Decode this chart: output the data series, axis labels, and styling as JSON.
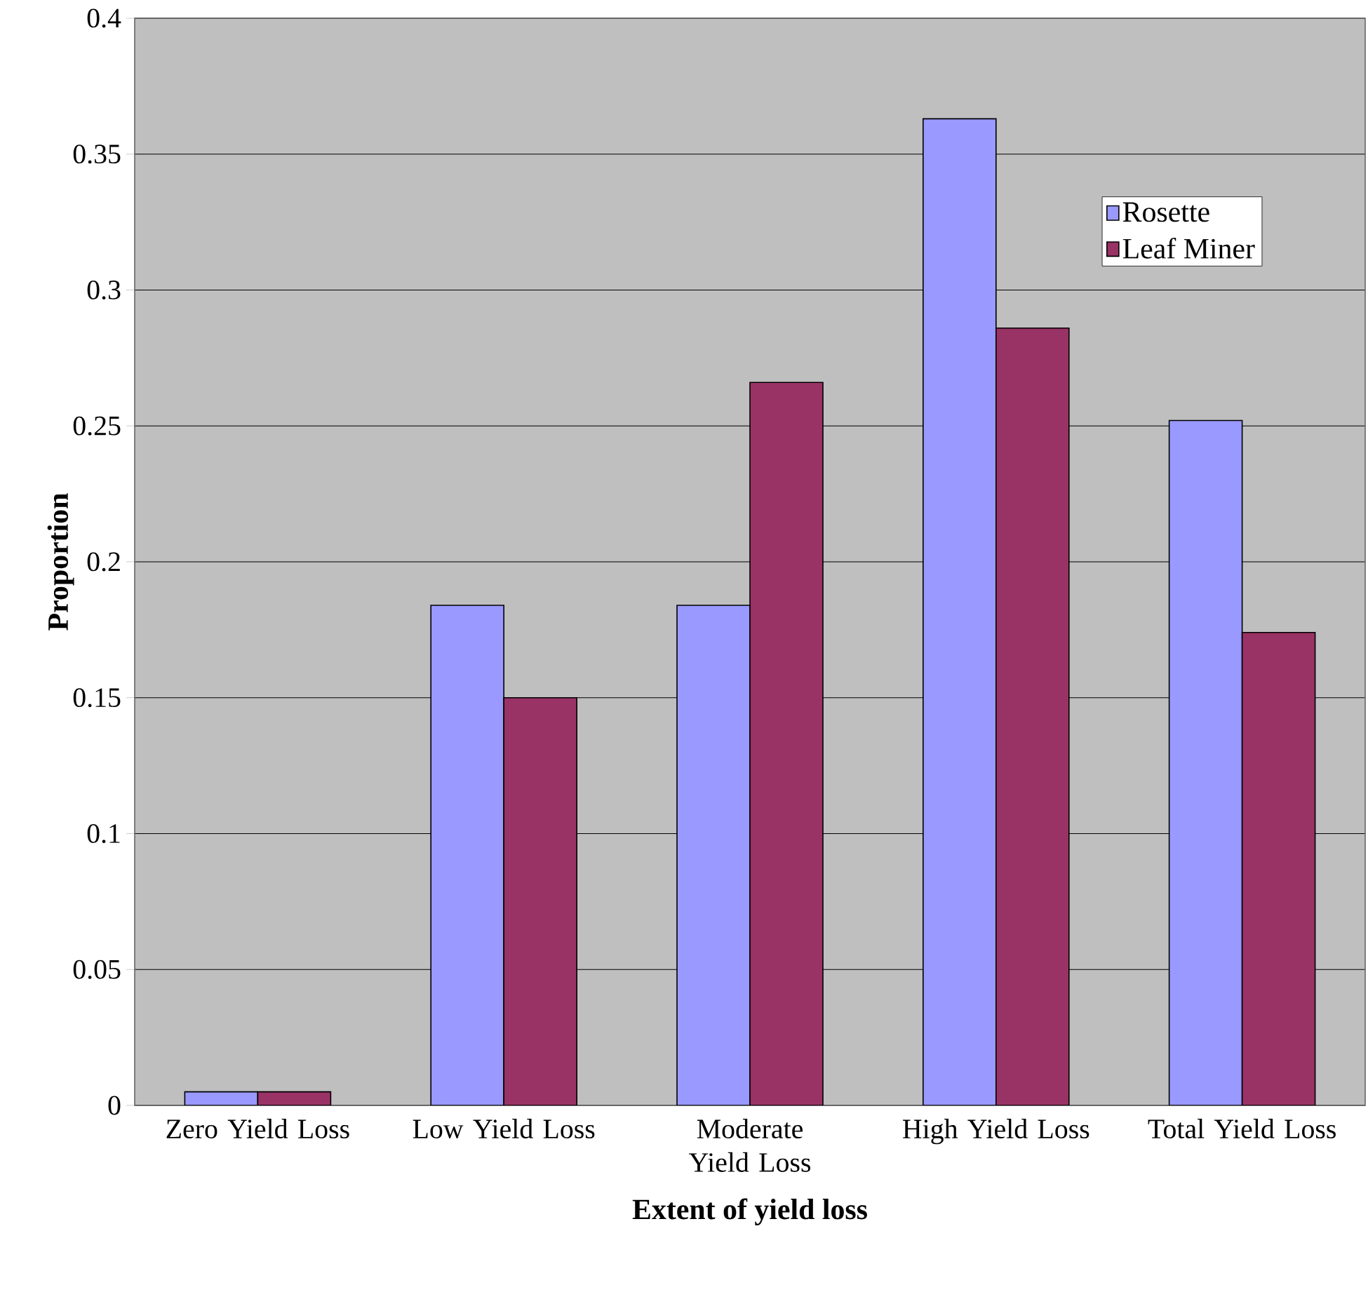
{
  "chart_data": {
    "type": "bar",
    "xlabel": "Extent of yield loss",
    "ylabel": "Proportion",
    "categories": [
      "Zero Yield Loss",
      "Low Yield Loss",
      "Moderate Yield Loss",
      "High Yield Loss",
      "Total Yield Loss"
    ],
    "series": [
      {
        "name": "Rosette",
        "color": "#9999ff",
        "values": [
          0.005,
          0.184,
          0.184,
          0.363,
          0.252
        ]
      },
      {
        "name": "Leaf Miner",
        "color": "#993366",
        "values": [
          0.005,
          0.15,
          0.266,
          0.286,
          0.174
        ]
      }
    ],
    "ylim": [
      0,
      0.4
    ],
    "yticks": [
      0,
      0.05,
      0.1,
      0.15,
      0.2,
      0.25,
      0.3,
      0.35,
      0.4
    ],
    "grid": "y",
    "legend": "right"
  }
}
